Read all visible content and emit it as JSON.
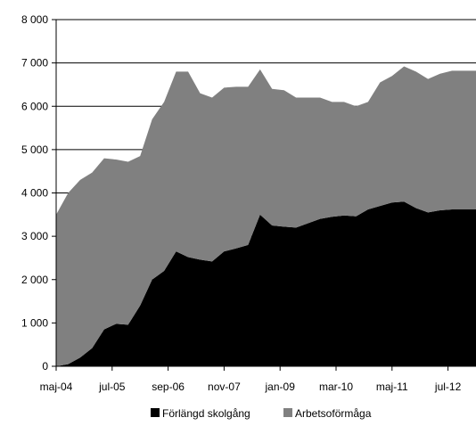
{
  "chart_data": {
    "type": "area",
    "stacked": true,
    "x_tick_labels": [
      "maj-04",
      "jul-05",
      "sep-06",
      "nov-07",
      "jan-09",
      "mar-10",
      "maj-11",
      "jul-12"
    ],
    "ylim": [
      0,
      8000
    ],
    "y_ticks": [
      {
        "value": 0,
        "label": "0"
      },
      {
        "value": 1000,
        "label": "1 000"
      },
      {
        "value": 2000,
        "label": "2 000"
      },
      {
        "value": 3000,
        "label": "3 000"
      },
      {
        "value": 4000,
        "label": "4 000"
      },
      {
        "value": 5000,
        "label": "5 000"
      },
      {
        "value": 6000,
        "label": "6 000"
      },
      {
        "value": 7000,
        "label": "7 000"
      },
      {
        "value": 8000,
        "label": "8 000"
      }
    ],
    "grid": "horizontal",
    "legend_position": "bottom",
    "x": [
      "2004-05",
      "2004-08",
      "2004-11",
      "2005-02",
      "2005-05",
      "2005-08",
      "2005-11",
      "2006-02",
      "2006-05",
      "2006-08",
      "2006-11",
      "2007-02",
      "2007-05",
      "2007-08",
      "2007-11",
      "2008-02",
      "2008-05",
      "2008-08",
      "2008-11",
      "2009-02",
      "2009-05",
      "2009-08",
      "2009-11",
      "2010-02",
      "2010-05",
      "2010-08",
      "2010-11",
      "2011-02",
      "2011-05",
      "2011-08",
      "2011-11",
      "2012-02",
      "2012-05",
      "2012-08",
      "2012-11",
      "2013-02"
    ],
    "series": [
      {
        "name": "Förlängd skolgång",
        "color": "#000000",
        "values": [
          0,
          50,
          200,
          420,
          850,
          980,
          960,
          1400,
          2000,
          2200,
          2650,
          2520,
          2460,
          2420,
          2650,
          2720,
          2800,
          3500,
          3250,
          3220,
          3200,
          3300,
          3400,
          3450,
          3480,
          3460,
          3620,
          3700,
          3780,
          3800,
          3650,
          3550,
          3600,
          3620,
          3620,
          3620
        ]
      },
      {
        "name": "Arbetsoförmåga",
        "color": "#808080",
        "values": [
          3500,
          3950,
          4100,
          4050,
          3950,
          3790,
          3760,
          3450,
          3700,
          3900,
          4150,
          4280,
          3840,
          3780,
          3780,
          3730,
          3650,
          3350,
          3150,
          3150,
          3000,
          2900,
          2800,
          2650,
          2620,
          2540,
          2480,
          2850,
          2920,
          3120,
          3150,
          3080,
          3150,
          3200,
          3200,
          3200
        ]
      }
    ]
  }
}
